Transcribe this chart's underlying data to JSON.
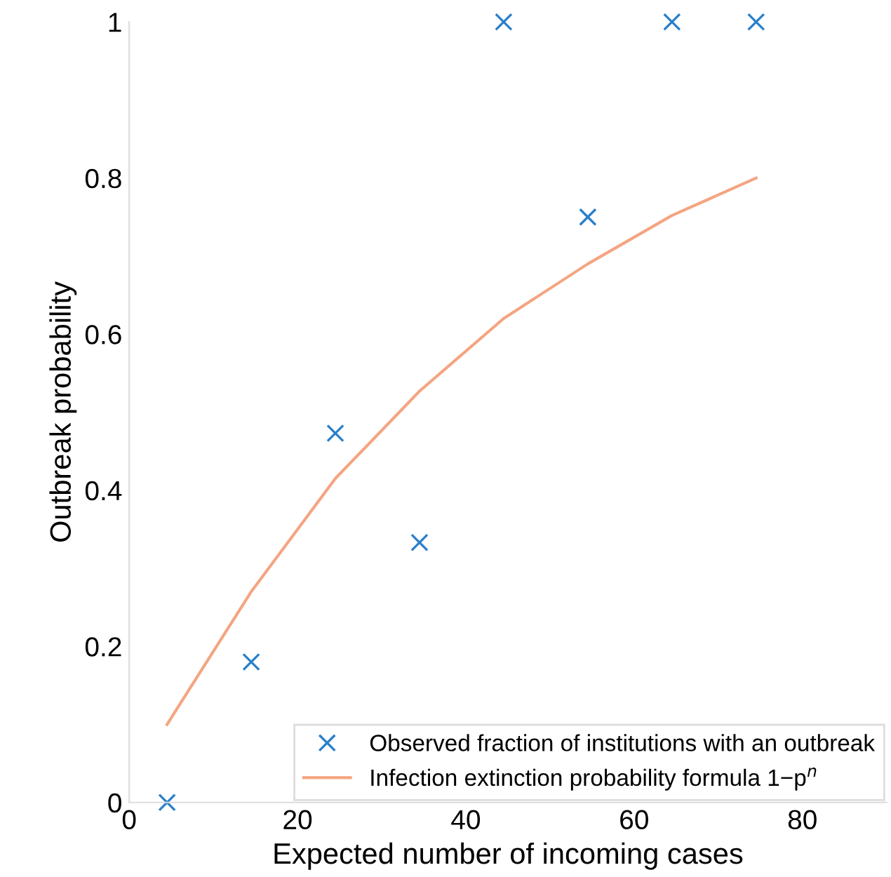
{
  "chart_data": {
    "type": "scatter",
    "xlabel": "Expected number of incoming cases",
    "ylabel": "Outbreak probability",
    "series": [
      {
        "name": "Observed fraction of institutions with an outbreak",
        "color": "#2a7fc9",
        "marker": "cross",
        "x": [
          4.5,
          14.5,
          24.5,
          34.5,
          44.5,
          54.5,
          64.5,
          74.5
        ],
        "values": [
          0,
          0.18,
          0.473,
          0.333,
          1,
          0.75,
          1,
          1
        ]
      },
      {
        "name": "Infection extinction probability formula 1−p$^{n}$",
        "type": "line",
        "color": "#f4a582",
        "marker": "none",
        "line_style": "solid",
        "x": [
          4.5,
          14.5,
          24.5,
          34.5,
          44.5,
          54.5,
          64.5,
          74.5
        ],
        "values": [
          0.1,
          0.27,
          0.415,
          0.527,
          0.62,
          0.69,
          0.752,
          0.8
        ]
      }
    ],
    "xlim": [
      0,
      90
    ],
    "xticks": [
      0,
      20,
      40,
      60,
      80
    ],
    "ylim": [
      0,
      1
    ],
    "yticks": [
      0,
      0.2,
      0.4,
      0.6,
      0.8,
      1
    ],
    "grid": false,
    "legend": "bottom right"
  }
}
